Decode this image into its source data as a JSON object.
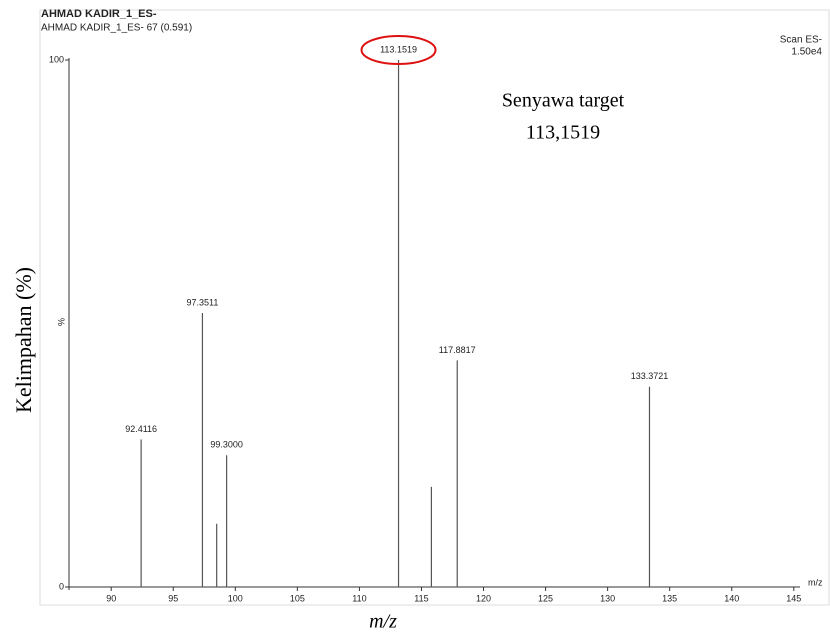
{
  "chart_data": {
    "type": "stick",
    "title": "AHMAD KADIR_1_ES-",
    "subtitle": "AHMAD KADIR_1_ES- 67 (0.591)",
    "scan_label": "Scan ES-",
    "scale_label": "1.50e4",
    "y_unit": "%",
    "x_unit": "m/z",
    "ylabel": "Kelimpahan (%)",
    "xlabel": "m/z",
    "annotation": [
      "Senyawa target",
      "113,1519"
    ],
    "x": [
      92.4116,
      97.3511,
      98.5,
      99.3,
      113.1519,
      115.8,
      117.8817,
      133.3721
    ],
    "x_labels": [
      "92.4116",
      "97.3511",
      null,
      "99.3000",
      "113.1519",
      null,
      "117.8817",
      "133.3721"
    ],
    "values": [
      28,
      52,
      12,
      25,
      100,
      19,
      43,
      38
    ],
    "color": "#555555",
    "xlim": [
      86.6,
      145.5
    ],
    "ylim": [
      0,
      100
    ],
    "xticks": [
      90,
      95,
      100,
      105,
      110,
      115,
      120,
      125,
      130,
      135,
      140,
      145
    ],
    "yticks": [
      0,
      100
    ]
  }
}
